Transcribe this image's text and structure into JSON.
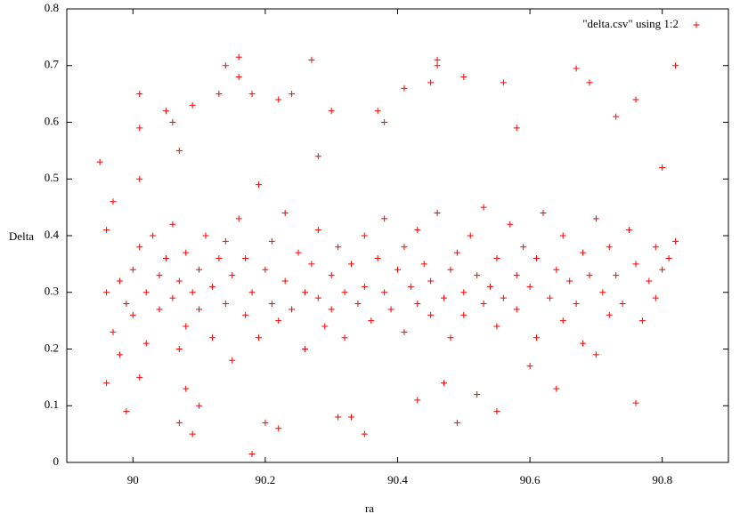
{
  "chart_data": {
    "type": "scatter",
    "xlabel": "ra",
    "ylabel": "Delta",
    "xlim": [
      89.9,
      90.9
    ],
    "ylim": [
      0,
      0.8
    ],
    "xticks": [
      90,
      90.2,
      90.4,
      90.6,
      90.8
    ],
    "yticks": [
      0,
      0.1,
      0.2,
      0.3,
      0.4,
      0.5,
      0.6,
      0.7,
      0.8
    ],
    "legend": "top-right",
    "marker": "plus",
    "x": [
      89.95,
      89.96,
      89.96,
      89.97,
      89.98,
      89.99,
      90.01,
      90.01,
      90.01,
      90.01,
      90.05,
      90.06,
      90.07,
      90.07,
      90.08,
      90.09,
      90.1,
      90.09,
      90.13,
      90.14,
      90.16,
      90.16,
      90.18,
      90.18,
      90.2,
      90.22,
      90.22,
      90.24,
      90.27,
      90.28,
      90.3,
      90.31,
      90.33,
      90.35,
      90.37,
      90.38,
      90.41,
      90.43,
      90.45,
      90.46,
      90.46,
      90.47,
      90.49,
      90.5,
      90.52,
      90.55,
      90.56,
      90.58,
      90.6,
      90.64,
      90.67,
      90.69,
      90.7,
      90.73,
      90.76,
      90.76,
      90.8,
      90.82,
      90.82,
      89.96,
      89.97,
      89.98,
      89.99,
      90.0,
      90.0,
      90.01,
      90.02,
      90.02,
      90.03,
      90.04,
      90.04,
      90.05,
      90.06,
      90.06,
      90.07,
      90.07,
      90.08,
      90.08,
      90.09,
      90.1,
      90.1,
      90.11,
      90.12,
      90.12,
      90.13,
      90.14,
      90.14,
      90.15,
      90.15,
      90.16,
      90.17,
      90.17,
      90.18,
      90.19,
      90.19,
      90.2,
      90.21,
      90.21,
      90.22,
      90.23,
      90.23,
      90.24,
      90.25,
      90.26,
      90.26,
      90.27,
      90.28,
      90.28,
      90.29,
      90.3,
      90.3,
      90.31,
      90.32,
      90.32,
      90.33,
      90.34,
      90.35,
      90.35,
      90.36,
      90.37,
      90.38,
      90.38,
      90.39,
      90.4,
      90.41,
      90.41,
      90.42,
      90.43,
      90.43,
      90.44,
      90.45,
      90.45,
      90.46,
      90.47,
      90.48,
      90.48,
      90.49,
      90.5,
      90.5,
      90.51,
      90.52,
      90.53,
      90.53,
      90.54,
      90.55,
      90.55,
      90.56,
      90.57,
      90.58,
      90.58,
      90.59,
      90.6,
      90.61,
      90.61,
      90.62,
      90.63,
      90.64,
      90.65,
      90.65,
      90.66,
      90.67,
      90.68,
      90.68,
      90.69,
      90.7,
      90.71,
      90.72,
      90.72,
      90.73,
      90.74,
      90.75,
      90.76,
      90.77,
      90.78,
      90.79,
      90.79,
      90.8,
      90.81
    ],
    "series": [
      {
        "name": "\"delta.csv\" using 1:2",
        "color": "#ff0000",
        "values": [
          0.53,
          0.14,
          0.41,
          0.46,
          0.19,
          0.09,
          0.65,
          0.59,
          0.5,
          0.15,
          0.62,
          0.6,
          0.55,
          0.07,
          0.13,
          0.05,
          0.1,
          0.63,
          0.65,
          0.7,
          0.715,
          0.68,
          0.015,
          0.65,
          0.07,
          0.64,
          0.06,
          0.65,
          0.71,
          0.54,
          0.62,
          0.08,
          0.08,
          0.05,
          0.62,
          0.6,
          0.66,
          0.11,
          0.67,
          0.71,
          0.7,
          0.14,
          0.07,
          0.68,
          0.12,
          0.09,
          0.67,
          0.59,
          0.17,
          0.13,
          0.695,
          0.67,
          0.19,
          0.61,
          0.64,
          0.105,
          0.52,
          0.7,
          0.39,
          0.3,
          0.23,
          0.32,
          0.28,
          0.34,
          0.26,
          0.38,
          0.3,
          0.21,
          0.4,
          0.33,
          0.27,
          0.36,
          0.29,
          0.42,
          0.2,
          0.32,
          0.37,
          0.24,
          0.3,
          0.34,
          0.27,
          0.4,
          0.31,
          0.22,
          0.36,
          0.28,
          0.39,
          0.18,
          0.33,
          0.43,
          0.26,
          0.36,
          0.3,
          0.49,
          0.22,
          0.34,
          0.28,
          0.39,
          0.25,
          0.32,
          0.44,
          0.27,
          0.37,
          0.3,
          0.2,
          0.35,
          0.29,
          0.41,
          0.24,
          0.33,
          0.27,
          0.38,
          0.3,
          0.22,
          0.35,
          0.28,
          0.4,
          0.31,
          0.25,
          0.36,
          0.3,
          0.43,
          0.27,
          0.34,
          0.23,
          0.38,
          0.31,
          0.28,
          0.41,
          0.35,
          0.26,
          0.32,
          0.44,
          0.29,
          0.34,
          0.22,
          0.37,
          0.3,
          0.26,
          0.4,
          0.33,
          0.28,
          0.45,
          0.31,
          0.36,
          0.24,
          0.29,
          0.42,
          0.33,
          0.27,
          0.38,
          0.31,
          0.22,
          0.36,
          0.44,
          0.29,
          0.34,
          0.25,
          0.4,
          0.32,
          0.28,
          0.37,
          0.21,
          0.33,
          0.43,
          0.3,
          0.26,
          0.38,
          0.33,
          0.28,
          0.41,
          0.35,
          0.25,
          0.32,
          0.38,
          0.29,
          0.34,
          0.36
        ]
      }
    ]
  }
}
